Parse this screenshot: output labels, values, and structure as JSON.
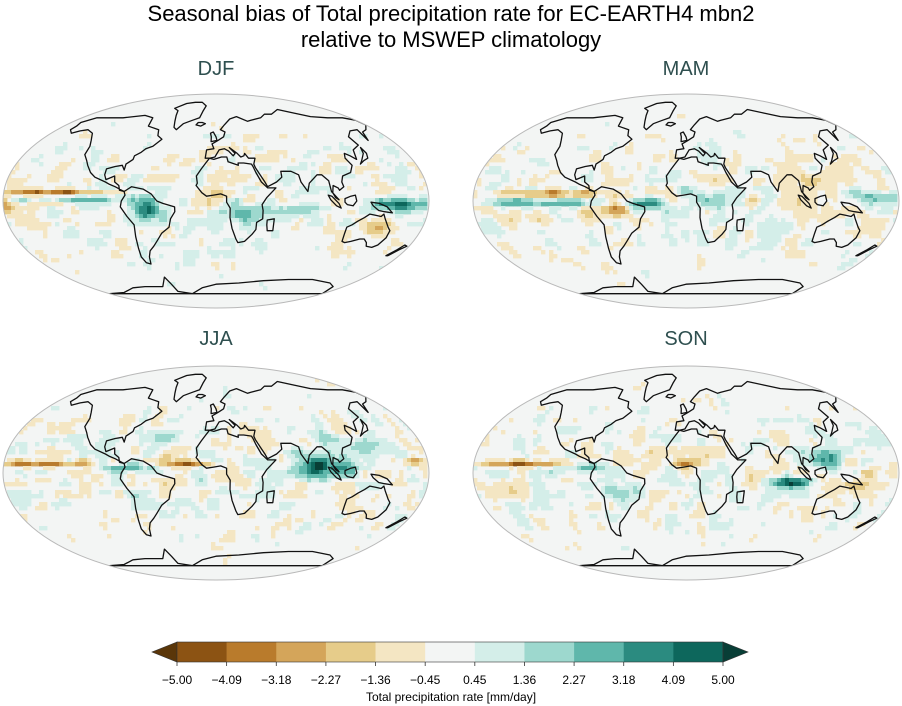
{
  "title": {
    "line1": "Seasonal bias of Total precipitation rate for EC-EARTH4 mbn2",
    "line2": "relative to MSWEP climatology"
  },
  "panels": [
    {
      "label": "DJF"
    },
    {
      "label": "MAM"
    },
    {
      "label": "JJA"
    },
    {
      "label": "SON"
    }
  ],
  "colorbar": {
    "label": "Total precipitation rate [mm/day]",
    "ticks": [
      "−5.00",
      "−4.09",
      "−3.18",
      "−2.27",
      "−1.36",
      "−0.45",
      "0.45",
      "1.36",
      "2.27",
      "3.18",
      "4.09",
      "5.00"
    ],
    "colors": [
      "#5a3609",
      "#8c5313",
      "#b97b2c",
      "#d4a55a",
      "#e6cc8a",
      "#f4e6c3",
      "#f3f5f4",
      "#d4eee9",
      "#9dd8ce",
      "#5fb7ab",
      "#2b8b80",
      "#0d675c",
      "#083e36"
    ]
  },
  "colors": {
    "ocean_bg": "#f3f5f4",
    "coast": "#111111",
    "title_panel": "#2e4f4f"
  }
}
